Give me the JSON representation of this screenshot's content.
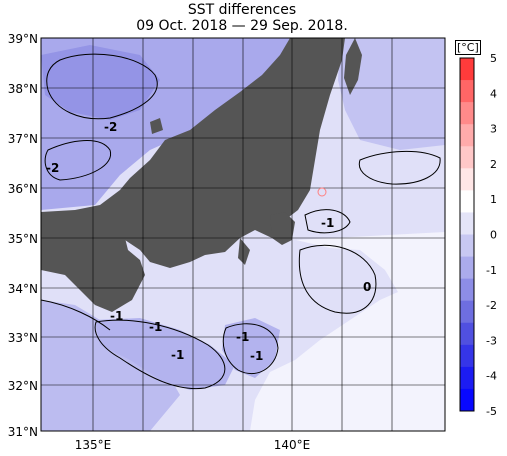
{
  "title": "SST differences",
  "subtitle": "09 Oct. 2018 — 29 Sep. 2018.",
  "unit": "[°C]",
  "lat_labels": [
    "39°N",
    "38°N",
    "37°N",
    "36°N",
    "35°N",
    "34°N",
    "33°N",
    "32°N",
    "31°N"
  ],
  "lon_labels": [
    "135°E",
    "140°E"
  ],
  "colorbar": {
    "ticks": [
      "5",
      "4",
      "3",
      "2",
      "1",
      "0",
      "-1",
      "-2",
      "-3",
      "-4",
      "-5"
    ],
    "colors": [
      "#ff3b3b",
      "#ff6666",
      "#ff8a8a",
      "#ffabab",
      "#ffc8c8",
      "#ffe6e6",
      "#ffffff",
      "#e4e4f8",
      "#c8c8f2",
      "#ababec",
      "#8d8de6",
      "#6e6ee0",
      "#5050e0",
      "#3535e8",
      "#1c1cf2",
      "#0808ff"
    ]
  },
  "contour_labels": [
    "-2",
    "-2",
    "-1",
    "0",
    "-1",
    "-1",
    "-1",
    "-1",
    "-1",
    "-1"
  ],
  "colors": {
    "land": "#555555",
    "sea_light": "#e0e0f8",
    "sea_mid": "#b8b8f0",
    "sea_dark": "#9d9de8"
  }
}
